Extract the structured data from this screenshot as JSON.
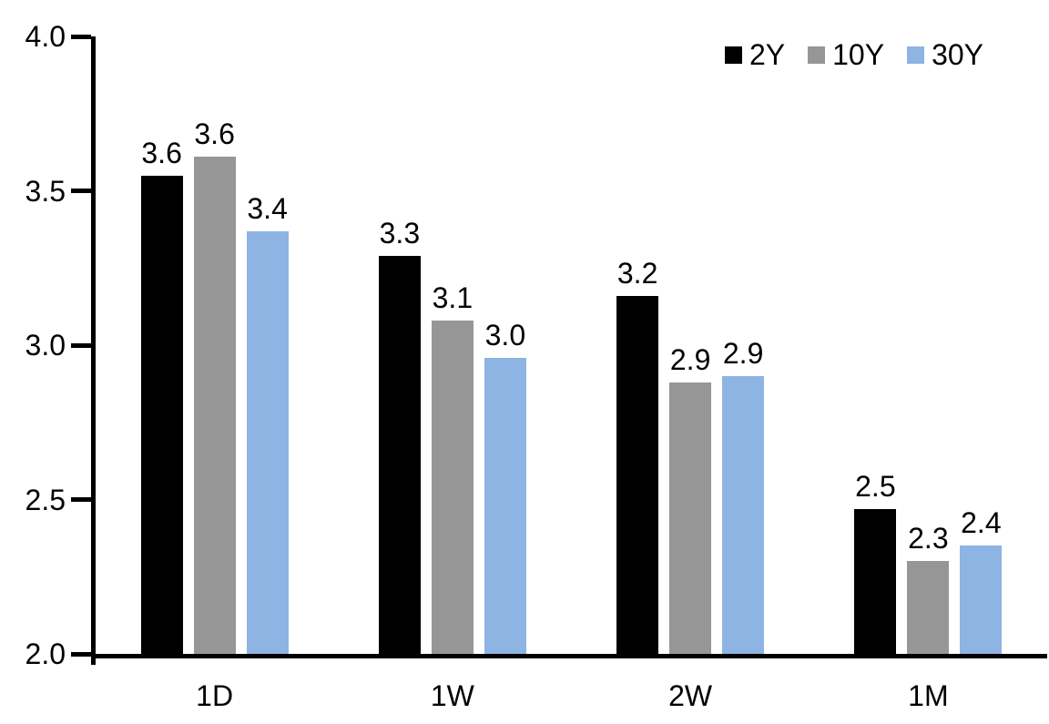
{
  "chart_data": {
    "type": "bar",
    "title": "",
    "xlabel": "",
    "ylabel": "",
    "grid": false,
    "legend_position": "top-right",
    "background_color": "#ffffff",
    "axis_color": "#000000",
    "text_color": "#000000",
    "ylim": [
      2.0,
      4.0
    ],
    "yticks": [
      2.0,
      2.5,
      3.0,
      3.5,
      4.0
    ],
    "ytick_labels": [
      "2.0",
      "2.5",
      "3.0",
      "3.5",
      "4.0"
    ],
    "categories": [
      "1D",
      "1W",
      "2W",
      "1M"
    ],
    "series": [
      {
        "name": "2Y",
        "color": "#000000",
        "values": [
          3.55,
          3.29,
          3.16,
          2.47
        ],
        "labels": [
          "3.6",
          "3.3",
          "3.2",
          "2.5"
        ]
      },
      {
        "name": "10Y",
        "color": "#969696",
        "values": [
          3.61,
          3.08,
          2.88,
          2.3
        ],
        "labels": [
          "3.6",
          "3.1",
          "2.9",
          "2.3"
        ]
      },
      {
        "name": "30Y",
        "color": "#8DB4E2",
        "values": [
          3.37,
          2.96,
          2.9,
          2.35
        ],
        "labels": [
          "3.4",
          "3.0",
          "2.9",
          "2.4"
        ]
      }
    ]
  }
}
